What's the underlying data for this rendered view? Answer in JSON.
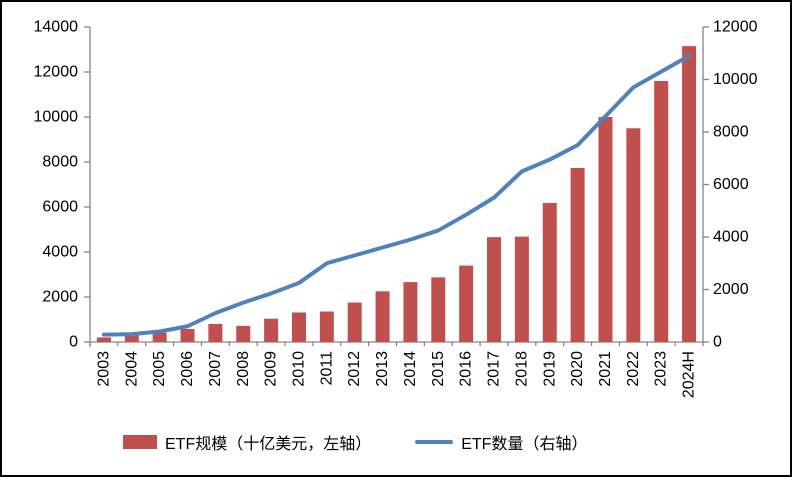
{
  "chart_data": {
    "type": "combo-bar-line",
    "title": "",
    "categories": [
      "2003",
      "2004",
      "2005",
      "2006",
      "2007",
      "2008",
      "2009",
      "2010",
      "2011",
      "2012",
      "2013",
      "2014",
      "2015",
      "2016",
      "2017",
      "2018",
      "2019",
      "2020",
      "2021",
      "2022",
      "2023",
      "2024H"
    ],
    "series": [
      {
        "name": "ETF规模（十亿美元，左轴）",
        "type": "bar",
        "axis": "left",
        "color": "#C0504D",
        "values": [
          204,
          310,
          417,
          580,
          800,
          716,
          1036,
          1313,
          1355,
          1754,
          2254,
          2662,
          2870,
          3396,
          4661,
          4683,
          6181,
          7736,
          10000,
          9500,
          11600,
          13150
        ]
      },
      {
        "name": "ETF数量（右轴）",
        "type": "line",
        "axis": "right",
        "color": "#4F81BD",
        "values": [
          280,
          300,
          400,
          600,
          1100,
          1500,
          1850,
          2250,
          3000,
          3300,
          3600,
          3900,
          4250,
          4850,
          5500,
          6500,
          6950,
          7500,
          8600,
          9700,
          10300,
          10900
        ]
      }
    ],
    "left_axis": {
      "min": 0,
      "max": 14000,
      "step": 2000,
      "tick_labels": [
        "0",
        "2000",
        "4000",
        "6000",
        "8000",
        "10000",
        "12000",
        "14000"
      ]
    },
    "right_axis": {
      "min": 0,
      "max": 12000,
      "step": 2000,
      "tick_labels": [
        "0",
        "2000",
        "4000",
        "6000",
        "8000",
        "10000",
        "12000"
      ]
    },
    "legend_position": "bottom",
    "grid": false
  },
  "legend": {
    "bar_label": "ETF规模（十亿美元，左轴）",
    "line_label": "ETF数量（右轴）"
  },
  "colors": {
    "bar": "#C0504D",
    "line": "#4F81BD",
    "axis": "#868686",
    "text": "#000000",
    "background": "#FFFFFF",
    "border": "#000000"
  }
}
